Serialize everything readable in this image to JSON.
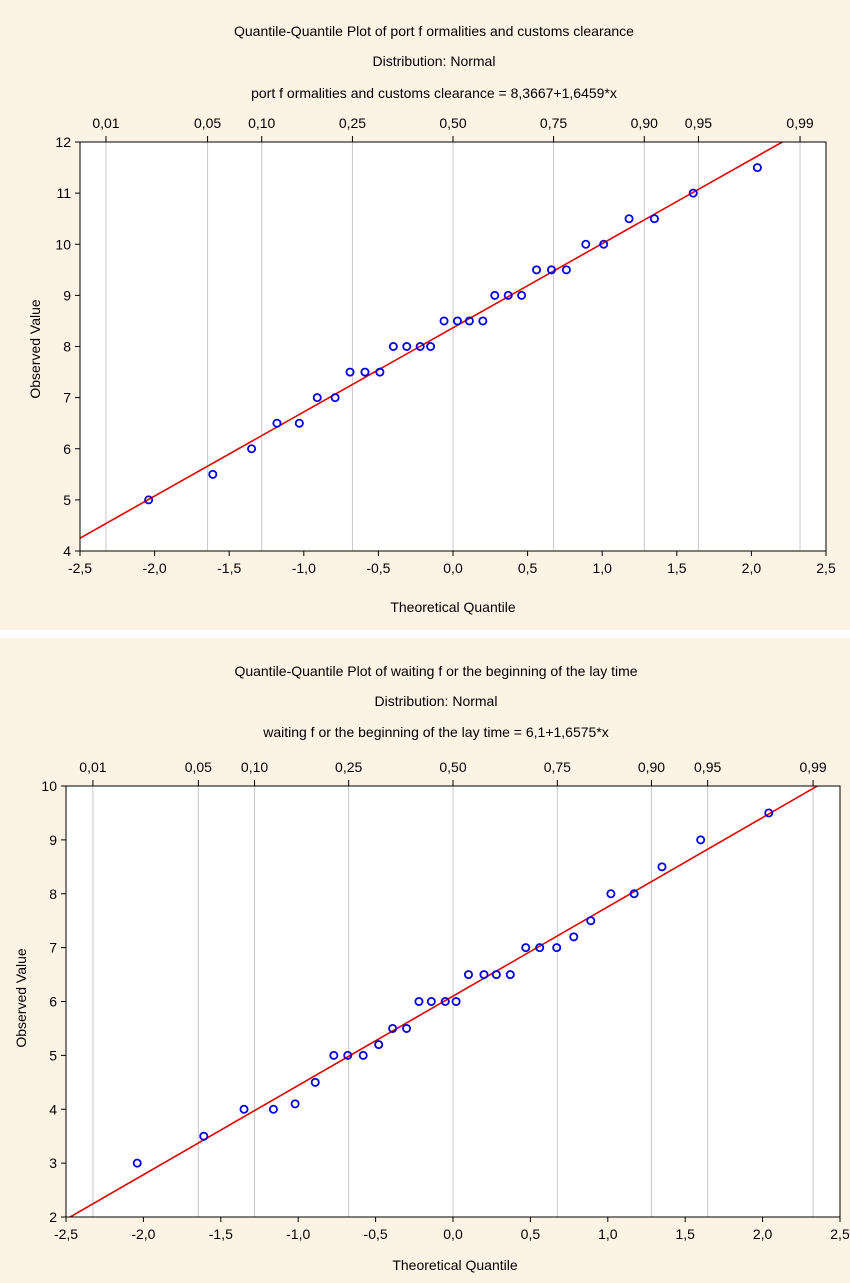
{
  "chart_data": [
    {
      "type": "scatter",
      "title": "Quantile-Quantile Plot of port f ormalities and customs clearance",
      "subtitle": "Distribution: Normal",
      "equation": "port f ormalities and customs clearance = 8,3667+1,6459*x",
      "xlabel": "Theoretical Quantile",
      "ylabel": "Observed Value",
      "xlim": [
        -2.5,
        2.5
      ],
      "ylim": [
        4,
        12
      ],
      "x_ticks": [
        "-2,5",
        "-2,0",
        "-1,5",
        "-1,0",
        "-0,5",
        "0,0",
        "0,5",
        "1,0",
        "1,5",
        "2,0",
        "2,5"
      ],
      "y_ticks": [
        "4",
        "5",
        "6",
        "7",
        "8",
        "9",
        "10",
        "11",
        "12"
      ],
      "prob_ticks": [
        {
          "label": "0,01",
          "q": -2.326
        },
        {
          "label": "0,05",
          "q": -1.645
        },
        {
          "label": "0,10",
          "q": -1.282
        },
        {
          "label": "0,25",
          "q": -0.674
        },
        {
          "label": "0,50",
          "q": 0.0
        },
        {
          "label": "0,75",
          "q": 0.674
        },
        {
          "label": "0,90",
          "q": 1.282
        },
        {
          "label": "0,95",
          "q": 1.645
        },
        {
          "label": "0,99",
          "q": 2.326
        }
      ],
      "fit": {
        "intercept": 8.3667,
        "slope": 1.6459
      },
      "grid": "vertical",
      "points": [
        [
          -2.04,
          5.0
        ],
        [
          -1.61,
          5.5
        ],
        [
          -1.35,
          6.0
        ],
        [
          -1.18,
          6.5
        ],
        [
          -1.03,
          6.5
        ],
        [
          -0.91,
          7.0
        ],
        [
          -0.79,
          7.0
        ],
        [
          -0.69,
          7.5
        ],
        [
          -0.59,
          7.5
        ],
        [
          -0.49,
          7.5
        ],
        [
          -0.4,
          8.0
        ],
        [
          -0.31,
          8.0
        ],
        [
          -0.22,
          8.0
        ],
        [
          -0.15,
          8.0
        ],
        [
          -0.06,
          8.5
        ],
        [
          0.03,
          8.5
        ],
        [
          0.11,
          8.5
        ],
        [
          0.2,
          8.5
        ],
        [
          0.28,
          9.0
        ],
        [
          0.37,
          9.0
        ],
        [
          0.46,
          9.0
        ],
        [
          0.56,
          9.5
        ],
        [
          0.66,
          9.5
        ],
        [
          0.76,
          9.5
        ],
        [
          0.89,
          10.0
        ],
        [
          1.01,
          10.0
        ],
        [
          1.18,
          10.5
        ],
        [
          1.35,
          10.5
        ],
        [
          1.61,
          11.0
        ],
        [
          2.04,
          11.5
        ]
      ],
      "colors": {
        "points": "#0000e0",
        "fit": "#e00000",
        "grid": "#c8c8c8",
        "panel": "#fdf3e5"
      }
    },
    {
      "type": "scatter",
      "title": "Quantile-Quantile Plot of waiting f or the beginning of the lay time",
      "subtitle": "Distribution: Normal",
      "equation": "waiting f or the beginning of the lay time = 6,1+1,6575*x",
      "xlabel": "Theoretical Quantile",
      "ylabel": "Observed Value",
      "xlim": [
        -2.5,
        2.5
      ],
      "ylim": [
        2,
        10
      ],
      "x_ticks": [
        "-2,5",
        "-2,0",
        "-1,5",
        "-1,0",
        "-0,5",
        "0,0",
        "0,5",
        "1,0",
        "1,5",
        "2,0",
        "2,5"
      ],
      "y_ticks": [
        "2",
        "3",
        "4",
        "5",
        "6",
        "7",
        "8",
        "9",
        "10"
      ],
      "prob_ticks": [
        {
          "label": "0,01",
          "q": -2.326
        },
        {
          "label": "0,05",
          "q": -1.645
        },
        {
          "label": "0,10",
          "q": -1.282
        },
        {
          "label": "0,25",
          "q": -0.674
        },
        {
          "label": "0,50",
          "q": 0.0
        },
        {
          "label": "0,75",
          "q": 0.674
        },
        {
          "label": "0,90",
          "q": 1.282
        },
        {
          "label": "0,95",
          "q": 1.645
        },
        {
          "label": "0,99",
          "q": 2.326
        }
      ],
      "fit": {
        "intercept": 6.1,
        "slope": 1.6575
      },
      "grid": "vertical",
      "points": [
        [
          -2.04,
          3.0
        ],
        [
          -1.61,
          3.5
        ],
        [
          -1.35,
          4.0
        ],
        [
          -1.16,
          4.0
        ],
        [
          -1.02,
          4.1
        ],
        [
          -0.89,
          4.5
        ],
        [
          -0.77,
          5.0
        ],
        [
          -0.68,
          5.0
        ],
        [
          -0.58,
          5.0
        ],
        [
          -0.48,
          5.2
        ],
        [
          -0.39,
          5.5
        ],
        [
          -0.3,
          5.5
        ],
        [
          -0.22,
          6.0
        ],
        [
          -0.14,
          6.0
        ],
        [
          -0.05,
          6.0
        ],
        [
          0.02,
          6.0
        ],
        [
          0.1,
          6.5
        ],
        [
          0.2,
          6.5
        ],
        [
          0.28,
          6.5
        ],
        [
          0.37,
          6.5
        ],
        [
          0.47,
          7.0
        ],
        [
          0.56,
          7.0
        ],
        [
          0.67,
          7.0
        ],
        [
          0.78,
          7.2
        ],
        [
          0.89,
          7.5
        ],
        [
          1.02,
          8.0
        ],
        [
          1.17,
          8.0
        ],
        [
          1.35,
          8.5
        ],
        [
          1.6,
          9.0
        ],
        [
          2.04,
          9.5
        ]
      ],
      "colors": {
        "points": "#0000e0",
        "fit": "#e00000",
        "grid": "#c8c8c8",
        "panel": "#fdf3e5"
      }
    }
  ]
}
